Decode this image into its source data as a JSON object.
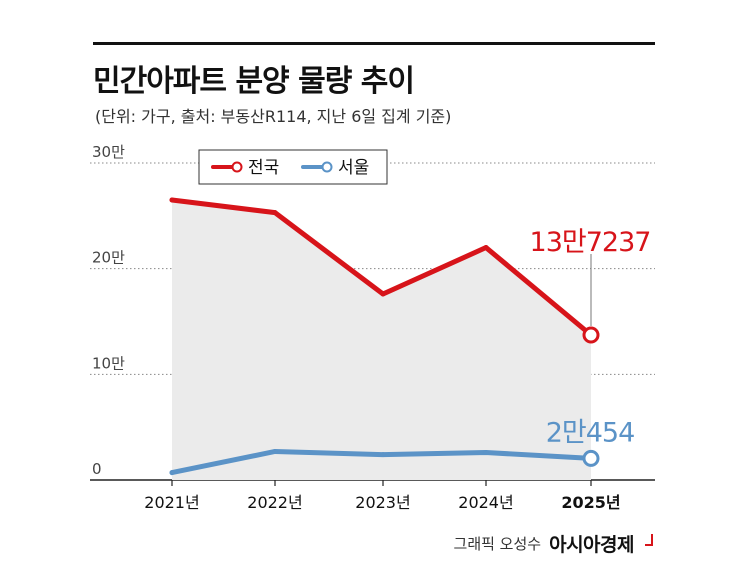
{
  "header": {
    "title": "민간아파트 분양 물량 추이",
    "subtitle": "(단위: 가구, 출처: 부동산R114, 지난 6일 집계 기준)"
  },
  "colors": {
    "national": "#d7141a",
    "seoul": "#5b93c7",
    "area_fill": "#ebebeb"
  },
  "chart_data": {
    "type": "line",
    "categories": [
      "2021년",
      "2022년",
      "2023년",
      "2024년",
      "2025년"
    ],
    "highlight_category": "2025년",
    "y_ticks": [
      {
        "value": 0,
        "label": "0"
      },
      {
        "value": 100000,
        "label": "10만"
      },
      {
        "value": 200000,
        "label": "20만"
      },
      {
        "value": 300000,
        "label": "30만"
      }
    ],
    "ylim": [
      0,
      300000
    ],
    "grid": true,
    "legend_position": "top-center",
    "series": [
      {
        "name": "전국",
        "color": "#d7141a",
        "values": [
          265000,
          253000,
          176000,
          220000,
          137237
        ],
        "last_label": "13만7237"
      },
      {
        "name": "서울",
        "color": "#5b93c7",
        "values": [
          7000,
          27000,
          24000,
          26000,
          20454
        ],
        "last_label": "2만454"
      }
    ]
  },
  "footer": {
    "credit_prefix": "그래픽 오성수",
    "brand": "아시아경제"
  }
}
